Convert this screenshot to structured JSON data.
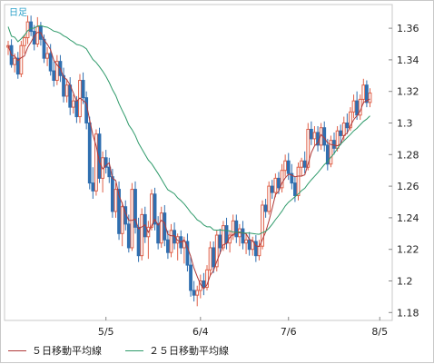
{
  "chart_data": {
    "type": "candlestick",
    "period_label": "日足",
    "yticks": [
      1.18,
      1.2,
      1.22,
      1.24,
      1.26,
      1.28,
      1.3,
      1.32,
      1.34,
      1.36
    ],
    "ytick_labels": [
      "1.18",
      "1.2",
      "1.22",
      "1.24",
      "1.26",
      "1.28",
      "1.3",
      "1.32",
      "1.34",
      "1.36"
    ],
    "ylim": [
      1.175,
      1.375
    ],
    "xticks": [
      {
        "index": 30,
        "label": "5/5"
      },
      {
        "index": 59,
        "label": "6/4"
      },
      {
        "index": 86,
        "label": "7/6"
      },
      {
        "index": 114,
        "label": "8/5"
      }
    ],
    "candles": [
      [
        1.348,
        1.352,
        1.343,
        1.349
      ],
      [
        1.349,
        1.353,
        1.335,
        1.337
      ],
      [
        1.337,
        1.344,
        1.332,
        1.341
      ],
      [
        1.341,
        1.345,
        1.328,
        1.331
      ],
      [
        1.331,
        1.352,
        1.329,
        1.349
      ],
      [
        1.349,
        1.356,
        1.344,
        1.354
      ],
      [
        1.354,
        1.368,
        1.35,
        1.364
      ],
      [
        1.364,
        1.368,
        1.355,
        1.358
      ],
      [
        1.358,
        1.362,
        1.346,
        1.35
      ],
      [
        1.35,
        1.367,
        1.348,
        1.361
      ],
      [
        1.361,
        1.364,
        1.349,
        1.353
      ],
      [
        1.353,
        1.356,
        1.338,
        1.341
      ],
      [
        1.341,
        1.348,
        1.336,
        1.344
      ],
      [
        1.344,
        1.35,
        1.33,
        1.333
      ],
      [
        1.333,
        1.339,
        1.323,
        1.327
      ],
      [
        1.327,
        1.343,
        1.324,
        1.339
      ],
      [
        1.339,
        1.343,
        1.326,
        1.33
      ],
      [
        1.33,
        1.335,
        1.313,
        1.317
      ],
      [
        1.317,
        1.328,
        1.313,
        1.324
      ],
      [
        1.324,
        1.329,
        1.305,
        1.31
      ],
      [
        1.31,
        1.318,
        1.306,
        1.314
      ],
      [
        1.314,
        1.317,
        1.3,
        1.304
      ],
      [
        1.304,
        1.331,
        1.3,
        1.327
      ],
      [
        1.327,
        1.332,
        1.312,
        1.316
      ],
      [
        1.316,
        1.32,
        1.296,
        1.3
      ],
      [
        1.3,
        1.304,
        1.258,
        1.262
      ],
      [
        1.262,
        1.272,
        1.252,
        1.257
      ],
      [
        1.257,
        1.296,
        1.254,
        1.293
      ],
      [
        1.293,
        1.297,
        1.262,
        1.265
      ],
      [
        1.265,
        1.282,
        1.256,
        1.278
      ],
      [
        1.278,
        1.283,
        1.268,
        1.272
      ],
      [
        1.272,
        1.278,
        1.262,
        1.266
      ],
      [
        1.266,
        1.271,
        1.24,
        1.244
      ],
      [
        1.244,
        1.262,
        1.24,
        1.258
      ],
      [
        1.258,
        1.263,
        1.226,
        1.23
      ],
      [
        1.23,
        1.25,
        1.222,
        1.247
      ],
      [
        1.247,
        1.251,
        1.232,
        1.236
      ],
      [
        1.236,
        1.242,
        1.218,
        1.221
      ],
      [
        1.221,
        1.262,
        1.219,
        1.258
      ],
      [
        1.258,
        1.263,
        1.23,
        1.234
      ],
      [
        1.234,
        1.24,
        1.212,
        1.216
      ],
      [
        1.216,
        1.246,
        1.213,
        1.242
      ],
      [
        1.242,
        1.247,
        1.224,
        1.228
      ],
      [
        1.228,
        1.238,
        1.214,
        1.234
      ],
      [
        1.234,
        1.258,
        1.232,
        1.255
      ],
      [
        1.255,
        1.259,
        1.232,
        1.236
      ],
      [
        1.236,
        1.241,
        1.22,
        1.224
      ],
      [
        1.224,
        1.247,
        1.221,
        1.243
      ],
      [
        1.243,
        1.248,
        1.222,
        1.226
      ],
      [
        1.226,
        1.232,
        1.214,
        1.218
      ],
      [
        1.218,
        1.236,
        1.215,
        1.232
      ],
      [
        1.232,
        1.237,
        1.22,
        1.224
      ],
      [
        1.224,
        1.23,
        1.213,
        1.228
      ],
      [
        1.228,
        1.232,
        1.217,
        1.221
      ],
      [
        1.221,
        1.228,
        1.211,
        1.225
      ],
      [
        1.225,
        1.23,
        1.206,
        1.21
      ],
      [
        1.21,
        1.216,
        1.19,
        1.194
      ],
      [
        1.194,
        1.2,
        1.187,
        1.191
      ],
      [
        1.191,
        1.197,
        1.184,
        1.194
      ],
      [
        1.194,
        1.204,
        1.189,
        1.2
      ],
      [
        1.2,
        1.205,
        1.191,
        1.196
      ],
      [
        1.196,
        1.21,
        1.194,
        1.207
      ],
      [
        1.207,
        1.225,
        1.203,
        1.221
      ],
      [
        1.221,
        1.225,
        1.205,
        1.209
      ],
      [
        1.209,
        1.232,
        1.206,
        1.229
      ],
      [
        1.229,
        1.233,
        1.217,
        1.221
      ],
      [
        1.221,
        1.238,
        1.219,
        1.235
      ],
      [
        1.235,
        1.24,
        1.22,
        1.224
      ],
      [
        1.224,
        1.232,
        1.218,
        1.229
      ],
      [
        1.229,
        1.242,
        1.226,
        1.238
      ],
      [
        1.238,
        1.242,
        1.224,
        1.228
      ],
      [
        1.228,
        1.236,
        1.222,
        1.233
      ],
      [
        1.233,
        1.238,
        1.22,
        1.224
      ],
      [
        1.224,
        1.23,
        1.217,
        1.226
      ],
      [
        1.226,
        1.231,
        1.216,
        1.22
      ],
      [
        1.22,
        1.228,
        1.216,
        1.225
      ],
      [
        1.225,
        1.229,
        1.212,
        1.216
      ],
      [
        1.216,
        1.226,
        1.213,
        1.222
      ],
      [
        1.222,
        1.251,
        1.22,
        1.248
      ],
      [
        1.248,
        1.252,
        1.24,
        1.244
      ],
      [
        1.244,
        1.263,
        1.242,
        1.26
      ],
      [
        1.26,
        1.264,
        1.252,
        1.256
      ],
      [
        1.256,
        1.268,
        1.253,
        1.265
      ],
      [
        1.265,
        1.269,
        1.255,
        1.259
      ],
      [
        1.259,
        1.274,
        1.256,
        1.27
      ],
      [
        1.27,
        1.28,
        1.266,
        1.276
      ],
      [
        1.276,
        1.281,
        1.264,
        1.268
      ],
      [
        1.268,
        1.274,
        1.258,
        1.262
      ],
      [
        1.262,
        1.266,
        1.25,
        1.254
      ],
      [
        1.254,
        1.275,
        1.251,
        1.272
      ],
      [
        1.272,
        1.278,
        1.266,
        1.276
      ],
      [
        1.276,
        1.282,
        1.268,
        1.272
      ],
      [
        1.272,
        1.3,
        1.27,
        1.296
      ],
      [
        1.296,
        1.301,
        1.286,
        1.29
      ],
      [
        1.29,
        1.298,
        1.286,
        1.294
      ],
      [
        1.294,
        1.298,
        1.282,
        1.286
      ],
      [
        1.286,
        1.3,
        1.283,
        1.297
      ],
      [
        1.297,
        1.301,
        1.282,
        1.286
      ],
      [
        1.286,
        1.29,
        1.27,
        1.274
      ],
      [
        1.274,
        1.292,
        1.272,
        1.289
      ],
      [
        1.289,
        1.294,
        1.28,
        1.284
      ],
      [
        1.284,
        1.298,
        1.282,
        1.295
      ],
      [
        1.295,
        1.299,
        1.286,
        1.292
      ],
      [
        1.292,
        1.304,
        1.289,
        1.3
      ],
      [
        1.3,
        1.306,
        1.293,
        1.297
      ],
      [
        1.297,
        1.31,
        1.295,
        1.307
      ],
      [
        1.307,
        1.318,
        1.303,
        1.314
      ],
      [
        1.314,
        1.32,
        1.302,
        1.305
      ],
      [
        1.305,
        1.318,
        1.302,
        1.315
      ],
      [
        1.315,
        1.328,
        1.312,
        1.324
      ],
      [
        1.324,
        1.327,
        1.31,
        1.313
      ],
      [
        1.313,
        1.322,
        1.31,
        1.319
      ]
    ],
    "series": [
      {
        "name": "５日移動平均線",
        "color": "#b03a3a"
      },
      {
        "name": "２５日移動平均線",
        "color": "#2e9a6a"
      }
    ],
    "up_color": "#e06048",
    "down_color": "#2f6fb0",
    "grid": false
  },
  "legend": {
    "ma5": "５日移動平均線",
    "ma25": "２５日移動平均線"
  }
}
